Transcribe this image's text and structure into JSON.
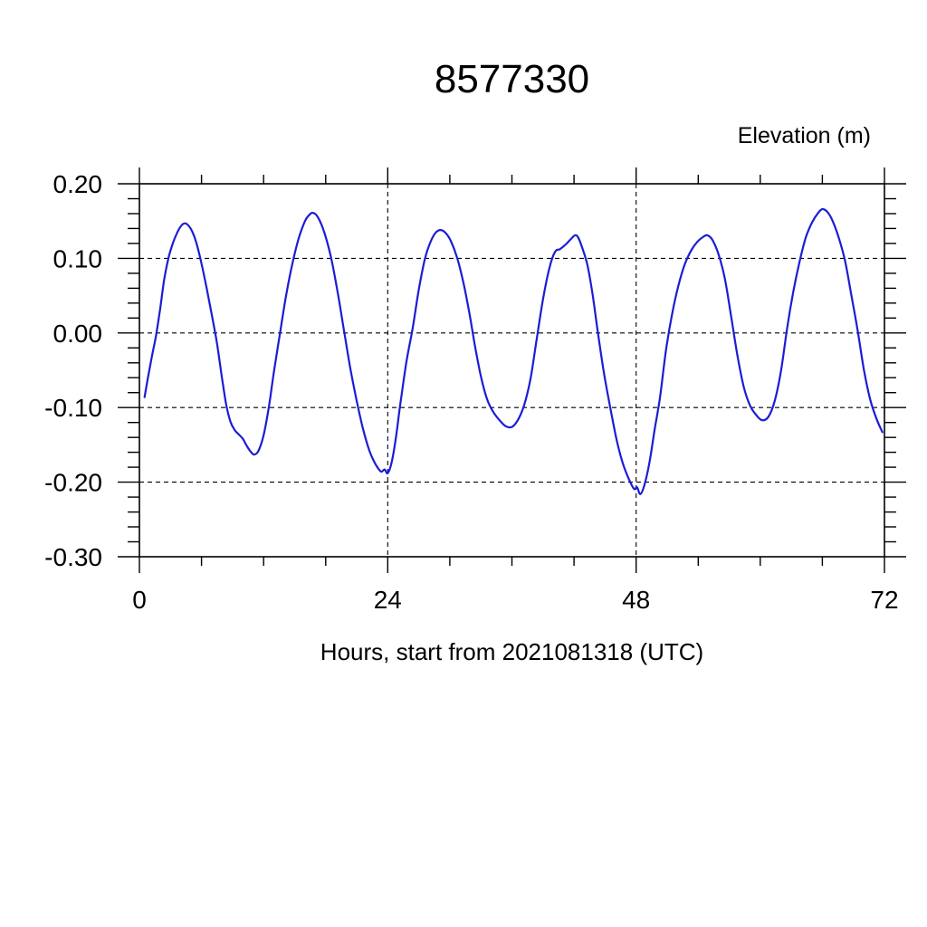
{
  "page": {
    "background": "#ffffff"
  },
  "chart_data": {
    "type": "line",
    "title": "8577330",
    "ylabel": "Elevation (m)",
    "xlabel": "Hours, start from 2021081318 (UTC)",
    "xlim": [
      0,
      72
    ],
    "ylim": [
      -0.3,
      0.2
    ],
    "x_major_ticks": [
      {
        "v": 0,
        "label": "0"
      },
      {
        "v": 24,
        "label": "24"
      },
      {
        "v": 48,
        "label": "48"
      },
      {
        "v": 72,
        "label": "72"
      }
    ],
    "x_minor_step": 6,
    "y_major_ticks": [
      {
        "v": 0.2,
        "label": "0.20"
      },
      {
        "v": 0.1,
        "label": "0.10"
      },
      {
        "v": 0.0,
        "label": "0.00"
      },
      {
        "v": -0.1,
        "label": "-0.10"
      },
      {
        "v": -0.2,
        "label": "-0.20"
      },
      {
        "v": -0.3,
        "label": "-0.30"
      }
    ],
    "y_minor_step": 0.02,
    "grid": {
      "style": "dashed",
      "x": [
        24,
        48
      ],
      "y": [
        0.2,
        0.1,
        0.0,
        -0.1,
        -0.2,
        -0.3
      ]
    },
    "axis_color": "#000000",
    "line_color": "#1c1cd6",
    "series": [
      {
        "name": "elevation",
        "points": [
          [
            0.5,
            -0.086
          ],
          [
            0.8,
            -0.062
          ],
          [
            1.2,
            -0.032
          ],
          [
            1.6,
            -0.004
          ],
          [
            2.0,
            0.032
          ],
          [
            2.4,
            0.072
          ],
          [
            2.8,
            0.1
          ],
          [
            3.2,
            0.119
          ],
          [
            3.6,
            0.133
          ],
          [
            4.0,
            0.143
          ],
          [
            4.4,
            0.147
          ],
          [
            4.8,
            0.143
          ],
          [
            5.2,
            0.133
          ],
          [
            5.6,
            0.116
          ],
          [
            6.0,
            0.093
          ],
          [
            6.5,
            0.06
          ],
          [
            7.0,
            0.024
          ],
          [
            7.5,
            -0.014
          ],
          [
            8.0,
            -0.062
          ],
          [
            8.4,
            -0.097
          ],
          [
            8.8,
            -0.119
          ],
          [
            9.2,
            -0.13
          ],
          [
            9.6,
            -0.136
          ],
          [
            10.0,
            -0.142
          ],
          [
            10.4,
            -0.152
          ],
          [
            10.8,
            -0.16
          ],
          [
            11.1,
            -0.163
          ],
          [
            11.5,
            -0.158
          ],
          [
            12.0,
            -0.137
          ],
          [
            12.5,
            -0.1
          ],
          [
            13.0,
            -0.052
          ],
          [
            13.6,
            0.001
          ],
          [
            14.2,
            0.052
          ],
          [
            14.8,
            0.094
          ],
          [
            15.4,
            0.127
          ],
          [
            16.0,
            0.15
          ],
          [
            16.4,
            0.158
          ],
          [
            16.7,
            0.161
          ],
          [
            17.1,
            0.158
          ],
          [
            17.6,
            0.145
          ],
          [
            18.1,
            0.124
          ],
          [
            18.6,
            0.096
          ],
          [
            19.2,
            0.051
          ],
          [
            19.8,
            0.001
          ],
          [
            20.4,
            -0.049
          ],
          [
            21.0,
            -0.091
          ],
          [
            21.6,
            -0.128
          ],
          [
            22.2,
            -0.157
          ],
          [
            22.7,
            -0.173
          ],
          [
            23.1,
            -0.182
          ],
          [
            23.4,
            -0.186
          ],
          [
            23.7,
            -0.183
          ],
          [
            24.0,
            -0.188
          ],
          [
            24.4,
            -0.172
          ],
          [
            24.8,
            -0.139
          ],
          [
            25.2,
            -0.097
          ],
          [
            25.8,
            -0.039
          ],
          [
            26.4,
            0.006
          ],
          [
            27.0,
            0.058
          ],
          [
            27.6,
            0.1
          ],
          [
            28.1,
            0.121
          ],
          [
            28.6,
            0.134
          ],
          [
            29.1,
            0.138
          ],
          [
            29.6,
            0.134
          ],
          [
            30.1,
            0.123
          ],
          [
            30.7,
            0.101
          ],
          [
            31.3,
            0.068
          ],
          [
            31.9,
            0.026
          ],
          [
            32.4,
            -0.015
          ],
          [
            33.0,
            -0.058
          ],
          [
            33.6,
            -0.089
          ],
          [
            34.2,
            -0.106
          ],
          [
            34.8,
            -0.117
          ],
          [
            35.4,
            -0.125
          ],
          [
            36.0,
            -0.126
          ],
          [
            36.6,
            -0.116
          ],
          [
            37.2,
            -0.096
          ],
          [
            37.8,
            -0.061
          ],
          [
            38.4,
            -0.008
          ],
          [
            39.0,
            0.045
          ],
          [
            39.6,
            0.086
          ],
          [
            40.0,
            0.104
          ],
          [
            40.3,
            0.111
          ],
          [
            40.6,
            0.112
          ],
          [
            40.9,
            0.115
          ],
          [
            41.3,
            0.12
          ],
          [
            41.7,
            0.126
          ],
          [
            42.1,
            0.131
          ],
          [
            42.4,
            0.128
          ],
          [
            42.8,
            0.114
          ],
          [
            43.3,
            0.091
          ],
          [
            43.8,
            0.051
          ],
          [
            44.3,
            0.001
          ],
          [
            44.9,
            -0.054
          ],
          [
            45.5,
            -0.1
          ],
          [
            46.1,
            -0.142
          ],
          [
            46.7,
            -0.174
          ],
          [
            47.3,
            -0.196
          ],
          [
            47.8,
            -0.209
          ],
          [
            48.1,
            -0.207
          ],
          [
            48.4,
            -0.216
          ],
          [
            48.8,
            -0.204
          ],
          [
            49.3,
            -0.173
          ],
          [
            49.8,
            -0.129
          ],
          [
            50.3,
            -0.087
          ],
          [
            50.9,
            -0.022
          ],
          [
            51.5,
            0.027
          ],
          [
            52.1,
            0.064
          ],
          [
            52.7,
            0.092
          ],
          [
            53.3,
            0.11
          ],
          [
            53.9,
            0.122
          ],
          [
            54.5,
            0.129
          ],
          [
            54.9,
            0.131
          ],
          [
            55.4,
            0.124
          ],
          [
            56.0,
            0.104
          ],
          [
            56.6,
            0.071
          ],
          [
            57.2,
            0.021
          ],
          [
            57.8,
            -0.031
          ],
          [
            58.4,
            -0.072
          ],
          [
            59.0,
            -0.097
          ],
          [
            59.6,
            -0.11
          ],
          [
            60.2,
            -0.117
          ],
          [
            60.8,
            -0.112
          ],
          [
            61.4,
            -0.091
          ],
          [
            62.0,
            -0.051
          ],
          [
            62.6,
            0.007
          ],
          [
            63.2,
            0.056
          ],
          [
            63.8,
            0.096
          ],
          [
            64.4,
            0.128
          ],
          [
            65.0,
            0.148
          ],
          [
            65.6,
            0.161
          ],
          [
            66.0,
            0.166
          ],
          [
            66.5,
            0.162
          ],
          [
            67.0,
            0.15
          ],
          [
            67.6,
            0.127
          ],
          [
            68.2,
            0.096
          ],
          [
            68.8,
            0.051
          ],
          [
            69.4,
            0.004
          ],
          [
            70.0,
            -0.048
          ],
          [
            70.6,
            -0.088
          ],
          [
            71.2,
            -0.114
          ],
          [
            71.8,
            -0.133
          ]
        ]
      }
    ]
  }
}
